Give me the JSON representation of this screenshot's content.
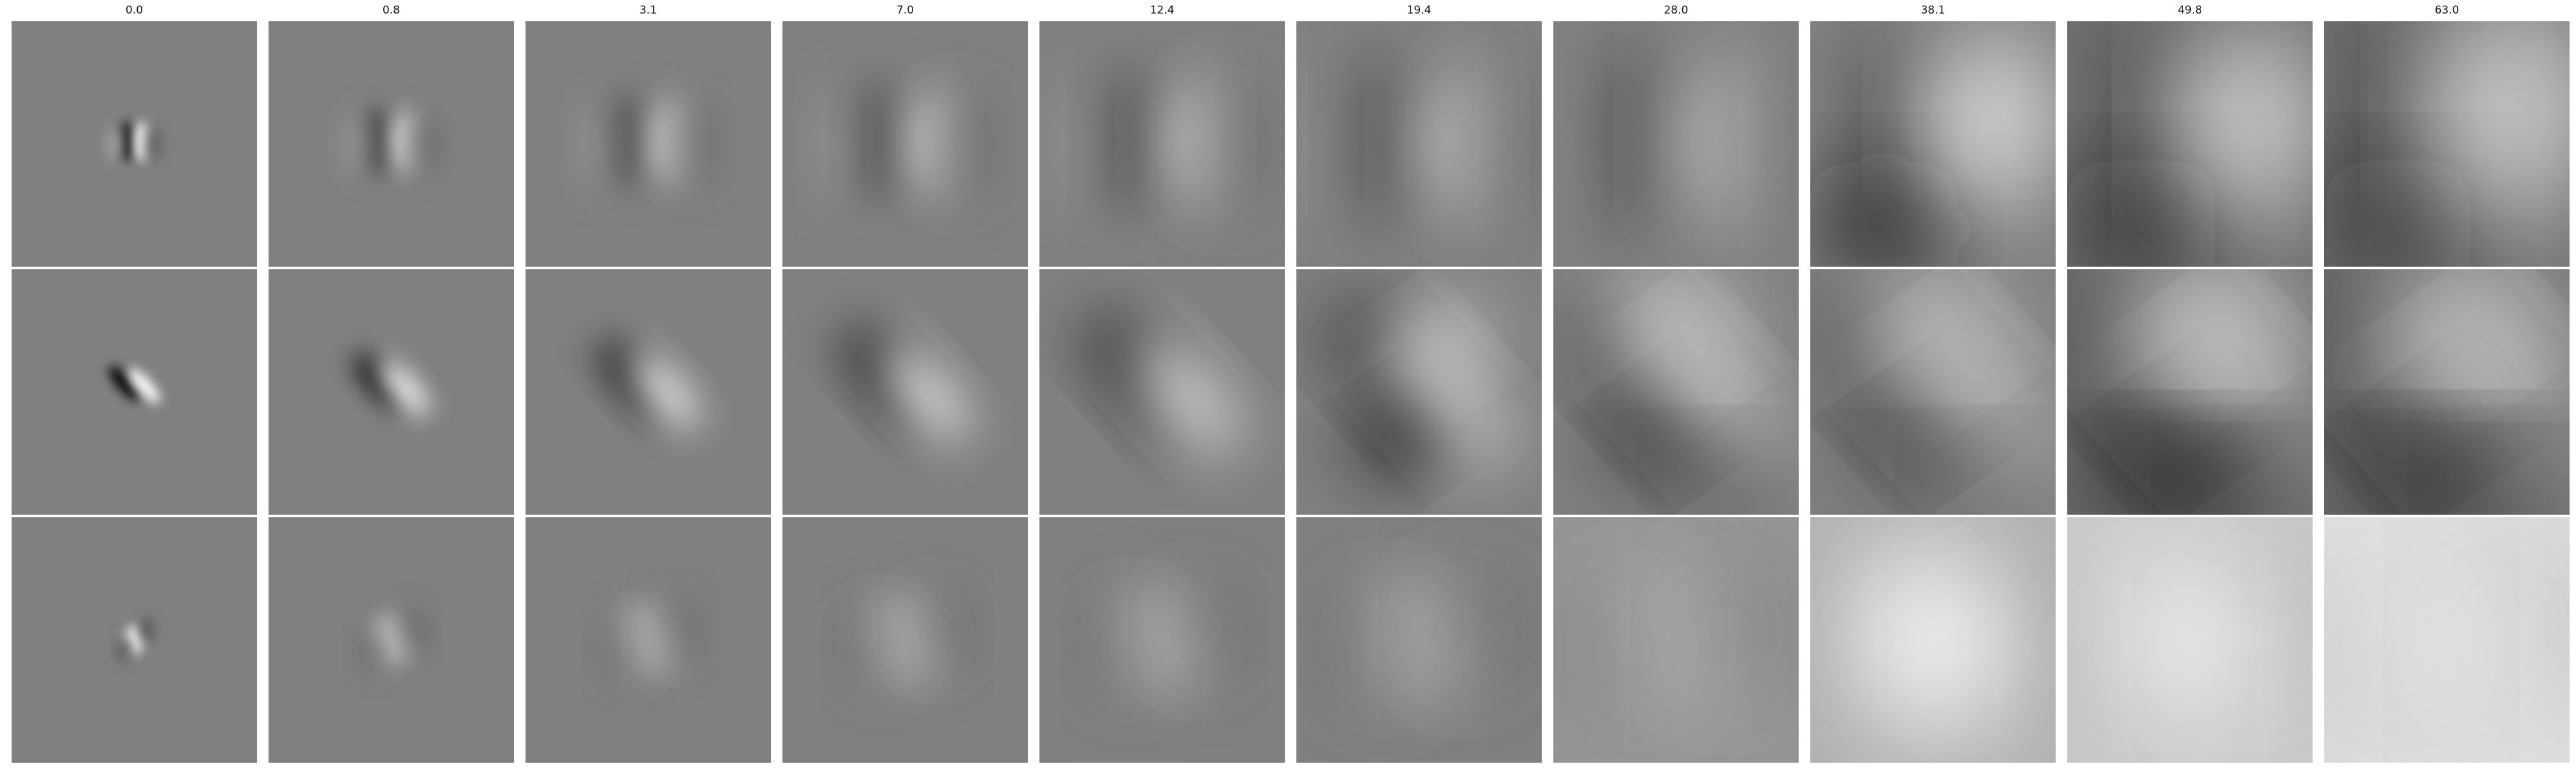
{
  "column_titles": [
    "0.0",
    "0.8",
    "3.1",
    "7.0",
    "12.4",
    "19.4",
    "28.0",
    "38.1",
    "49.8",
    "63.0"
  ],
  "colormap": "grayscale",
  "background_color": "#ffffff"
}
